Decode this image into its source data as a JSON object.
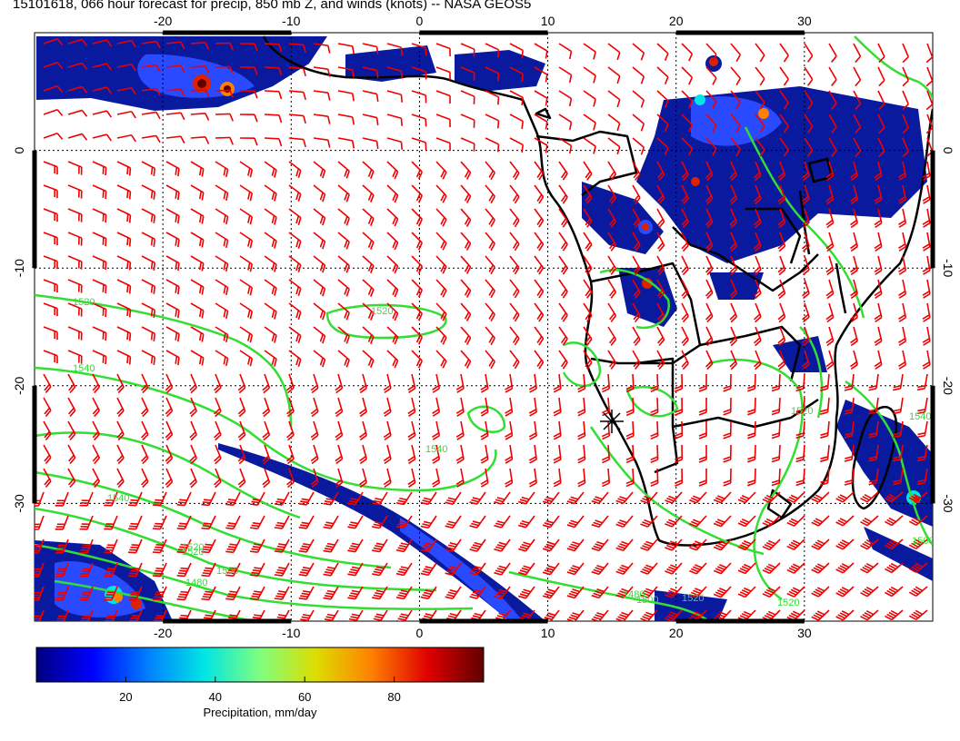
{
  "title": "15101618, 066 hour forecast for precip, 850 mb Z, and winds (knots) -- NASA GEOS5",
  "map": {
    "lon_range": [
      -30,
      40
    ],
    "lat_range": [
      -40,
      10
    ],
    "lon_ticks": [
      "-20",
      "-10",
      "0",
      "10",
      "20",
      "30"
    ],
    "lat_ticks": [
      "0",
      "-10",
      "-20",
      "-30"
    ],
    "contour_color": "#33dd33",
    "wind_barb_color": "#ee0000",
    "coastline_color": "#000000",
    "contour_labels": [
      "1520",
      "1520",
      "1540",
      "1520",
      "1540",
      "1520",
      "1500",
      "1480",
      "1480",
      "1500",
      "1520",
      "1520",
      "1540",
      "1500",
      "1540",
      "1520"
    ]
  },
  "colorbar": {
    "ticks": [
      "20",
      "40",
      "60",
      "80"
    ],
    "range": [
      0,
      100
    ],
    "label": "Precipitation, mm/day",
    "colors": [
      "#00007f",
      "#0000ff",
      "#0080ff",
      "#00e5e5",
      "#7fff7f",
      "#dddd00",
      "#ff8000",
      "#e00000",
      "#600000"
    ]
  }
}
